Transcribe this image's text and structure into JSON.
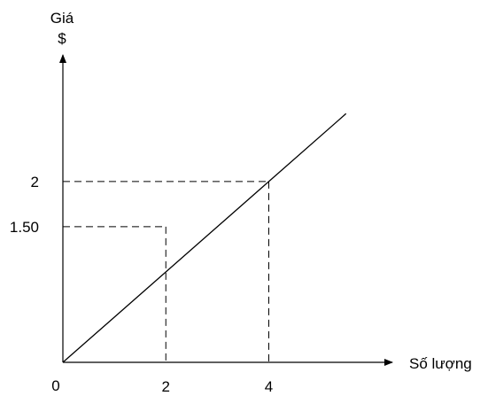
{
  "chart_data": {
    "type": "line",
    "y_axis_label_line1": "Giá",
    "y_axis_label_line2": "$",
    "x_axis_label": "Số lượng",
    "origin_label": "0",
    "series": [
      {
        "points": [
          [
            0,
            0
          ],
          [
            4,
            2
          ],
          [
            5.5,
            2.75
          ]
        ]
      }
    ],
    "reference_points": [
      {
        "x": 2,
        "y": 1.5,
        "x_label": "2",
        "y_label": "1.50"
      },
      {
        "x": 4,
        "y": 2,
        "x_label": "4",
        "y_label": "2"
      }
    ],
    "xlim": [
      0,
      6.4
    ],
    "ylim": [
      0,
      3.4
    ],
    "grid": false,
    "legend": "none"
  }
}
